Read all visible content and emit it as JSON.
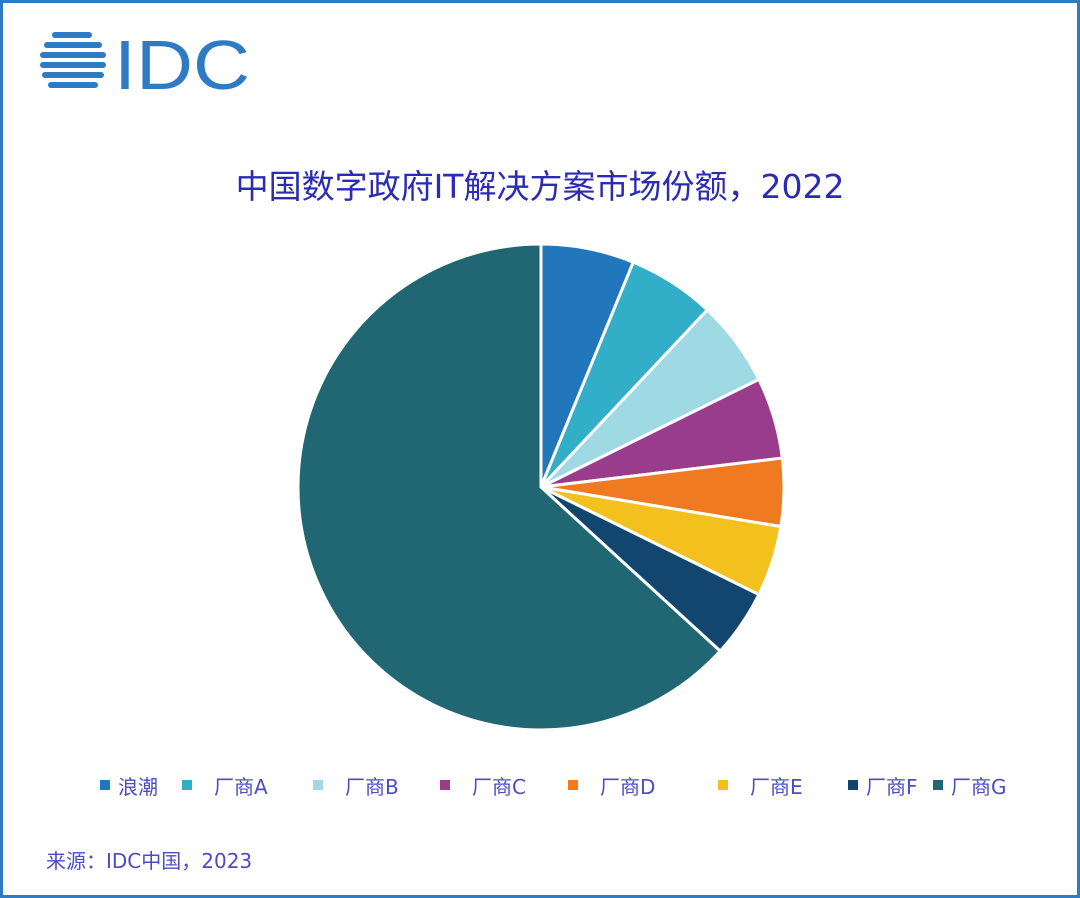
{
  "header": {
    "logo_text": "IDC",
    "title": "中国数字政府IT解决方案市场份额，2022"
  },
  "chart_data": {
    "type": "pie",
    "title": "中国数字政府IT解决方案市场份额，2022",
    "start_angle": "12 o'clock, clockwise",
    "categories": [
      "浪潮",
      "厂商A",
      "厂商B",
      "厂商C",
      "厂商D",
      "厂商E",
      "厂商F",
      "厂商G"
    ],
    "values": [
      6.2,
      5.8,
      5.7,
      5.4,
      4.5,
      4.7,
      4.5,
      63.2
    ],
    "unit": "% (estimated from slice angles)",
    "colors": [
      "#2276bb",
      "#33aec8",
      "#9fd9e4",
      "#9a3c8c",
      "#f07a22",
      "#f3c11e",
      "#13466e",
      "#216773"
    ],
    "legend_position": "bottom"
  },
  "legend": {
    "items": [
      {
        "label": "浪潮",
        "color": "#2276bb"
      },
      {
        "label": "厂商A",
        "color": "#33aec8"
      },
      {
        "label": "厂商B",
        "color": "#9fd9e4"
      },
      {
        "label": "厂商C",
        "color": "#9a3c8c"
      },
      {
        "label": "厂商D",
        "color": "#f07a22"
      },
      {
        "label": "厂商E",
        "color": "#f3c11e"
      },
      {
        "label": "厂商F",
        "color": "#13466e"
      },
      {
        "label": "厂商G",
        "color": "#216773"
      }
    ]
  },
  "footer": {
    "source": "来源：IDC中国，2023"
  }
}
